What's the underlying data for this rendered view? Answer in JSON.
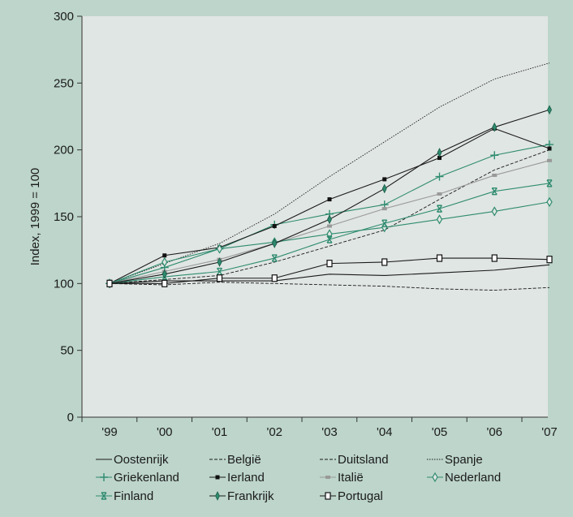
{
  "chart_data": {
    "type": "line",
    "ylabel": "Index, 1999 = 100",
    "xlabel": "",
    "categories": [
      "'99",
      "'00",
      "'01",
      "'02",
      "'03",
      "'04",
      "'05",
      "'06",
      "'07"
    ],
    "ylim": [
      0,
      300
    ],
    "yticks": [
      0,
      50,
      100,
      150,
      200,
      250,
      300
    ],
    "grid": false,
    "legend_position": "bottom",
    "colors": {
      "page_background": "#bdd5cb",
      "plot_background": "#e0e6e3",
      "black_series": "#1a1a1a",
      "green_series": "#2e8b6f",
      "gray_series": "#999999"
    },
    "series": [
      {
        "name": "Oostenrijk",
        "values": [
          100,
          102,
          102,
          102,
          107,
          106,
          108,
          110,
          114
        ],
        "color": "#1a1a1a",
        "dash": "",
        "marker": "none"
      },
      {
        "name": "België",
        "values": [
          100,
          103,
          106,
          116,
          128,
          140,
          163,
          185,
          200
        ],
        "color": "#1a1a1a",
        "dash": "4,2",
        "marker": "none"
      },
      {
        "name": "Duitsland",
        "values": [
          100,
          99,
          101,
          100,
          99,
          98,
          96,
          95,
          97
        ],
        "color": "#1a1a1a",
        "dash": "4,2",
        "marker": "none"
      },
      {
        "name": "Spanje",
        "values": [
          100,
          115,
          130,
          152,
          180,
          206,
          232,
          253,
          265
        ],
        "color": "#1a1a1a",
        "dash": "1.5,1.5",
        "marker": "none"
      },
      {
        "name": "Griekenland",
        "values": [
          100,
          112,
          126,
          144,
          152,
          159,
          180,
          196,
          204
        ],
        "color": "#2e8b6f",
        "dash": "",
        "marker": "plus"
      },
      {
        "name": "Ierland",
        "values": [
          100,
          121,
          127,
          143,
          163,
          178,
          194,
          216,
          201
        ],
        "color": "#1a1a1a",
        "dash": "",
        "marker": "square"
      },
      {
        "name": "Italië",
        "values": [
          100,
          109,
          118,
          130,
          143,
          156,
          167,
          181,
          192
        ],
        "color": "#999999",
        "dash": "",
        "marker": "graysquare"
      },
      {
        "name": "Nederland",
        "values": [
          100,
          116,
          126,
          131,
          137,
          142,
          148,
          154,
          161
        ],
        "color": "#2e8b6f",
        "dash": "",
        "marker": "diamond"
      },
      {
        "name": "Finland",
        "values": [
          100,
          105,
          109,
          119,
          133,
          145,
          156,
          169,
          175
        ],
        "color": "#2e8b6f",
        "dash": "",
        "marker": "star"
      },
      {
        "name": "Frankrijk",
        "values": [
          100,
          107,
          116,
          130,
          148,
          171,
          198,
          217,
          230
        ],
        "color": "#1a1a1a",
        "dash": "",
        "marker": "filleddiamond"
      },
      {
        "name": "Portugal",
        "values": [
          100,
          100,
          104,
          104,
          115,
          116,
          119,
          119,
          118
        ],
        "color": "#1a1a1a",
        "dash": "",
        "marker": "opensquare"
      }
    ]
  }
}
